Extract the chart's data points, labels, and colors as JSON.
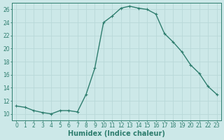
{
  "x": [
    0,
    1,
    2,
    3,
    4,
    5,
    6,
    7,
    8,
    9,
    10,
    11,
    12,
    13,
    14,
    15,
    16,
    17,
    18,
    19,
    20,
    21,
    22,
    23
  ],
  "y": [
    11.2,
    11.0,
    10.5,
    10.2,
    10.0,
    10.5,
    10.5,
    10.3,
    13.0,
    17.0,
    24.0,
    25.0,
    26.2,
    26.5,
    26.2,
    26.0,
    25.3,
    22.3,
    21.0,
    19.5,
    17.5,
    16.2,
    14.2,
    13.0
  ],
  "line_color": "#2e7d6e",
  "marker": "+",
  "marker_color": "#2e7d6e",
  "bg_color": "#cce8e8",
  "grid_color": "#b8d8d8",
  "xlabel": "Humidex (Indice chaleur)",
  "xlabel_fontsize": 7,
  "ylim": [
    9,
    27
  ],
  "xlim": [
    -0.5,
    23.5
  ],
  "yticks": [
    10,
    12,
    14,
    16,
    18,
    20,
    22,
    24,
    26
  ],
  "xticks": [
    0,
    1,
    2,
    3,
    4,
    5,
    6,
    7,
    8,
    9,
    10,
    11,
    12,
    13,
    14,
    15,
    16,
    17,
    18,
    19,
    20,
    21,
    22,
    23
  ],
  "tick_fontsize": 5.5,
  "axis_color": "#2e7d6e",
  "linewidth": 1.0,
  "markersize": 3
}
